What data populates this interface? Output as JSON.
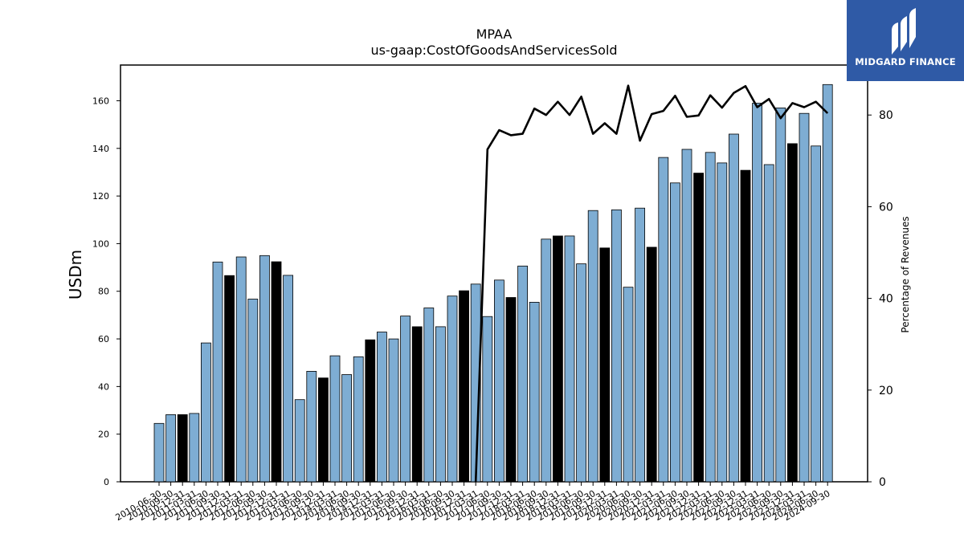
{
  "logo": {
    "text": "MIDGARD FINANCE",
    "bg_color": "#2f5aa6"
  },
  "chart_data": {
    "type": "bar",
    "title": "MPAA",
    "subtitle": "us-gaap:CostOfGoodsAndServicesSold",
    "ylabel": "USDm",
    "ylabel_right": "Percentage of Revenues",
    "ylim": [
      0,
      175
    ],
    "ylim_right": [
      0,
      90.9
    ],
    "yticks": [
      0,
      20,
      40,
      60,
      80,
      100,
      120,
      140,
      160
    ],
    "yticks_right": [
      0,
      20,
      40,
      60,
      80
    ],
    "grid": false,
    "bar_color": "#7eadd3",
    "highlight_color": "#000000",
    "line_color": "#000000",
    "categories": [
      "2010-06-30",
      "2010-09-30",
      "2010-12-31",
      "2011-03-31",
      "2011-06-30",
      "2011-09-30",
      "2011-12-31",
      "2012-03-31",
      "2012-06-30",
      "2012-09-30",
      "2012-12-31",
      "2013-03-31",
      "2013-06-30",
      "2013-09-30",
      "2013-12-31",
      "2014-03-31",
      "2014-06-30",
      "2014-09-30",
      "2014-12-31",
      "2015-03-31",
      "2015-06-30",
      "2015-09-30",
      "2015-12-31",
      "2016-03-31",
      "2016-06-30",
      "2016-09-30",
      "2016-12-31",
      "2017-03-31",
      "2017-06-30",
      "2017-09-30",
      "2017-12-31",
      "2018-03-31",
      "2018-06-30",
      "2018-09-30",
      "2018-12-31",
      "2019-03-31",
      "2019-06-30",
      "2019-09-30",
      "2019-12-31",
      "2020-03-31",
      "2020-06-30",
      "2020-09-30",
      "2020-12-31",
      "2021-03-31",
      "2021-06-30",
      "2021-09-30",
      "2021-12-31",
      "2022-03-31",
      "2022-06-30",
      "2022-09-30",
      "2022-12-31",
      "2023-03-31",
      "2023-06-30",
      "2023-09-30",
      "2023-12-31",
      "2024-03-31",
      "2024-06-30",
      "2024-09-30"
    ],
    "values": [
      24.5,
      28.2,
      28.2,
      28.7,
      58.3,
      92.3,
      86.6,
      94.4,
      76.7,
      95.0,
      92.4,
      86.7,
      34.5,
      46.4,
      43.6,
      52.9,
      45.0,
      52.5,
      59.6,
      62.9,
      60.0,
      69.6,
      65.1,
      73.0,
      65.1,
      78.0,
      80.2,
      83.0,
      69.4,
      84.7,
      77.4,
      90.6,
      75.4,
      101.9,
      103.2,
      103.2,
      91.5,
      113.9,
      98.2,
      114.2,
      81.7,
      114.9,
      98.5,
      136.2,
      125.5,
      139.6,
      129.6,
      138.3,
      133.9,
      146.0,
      130.8,
      159.0,
      133.2,
      157.0,
      142.0,
      154.7,
      141.0,
      166.8
    ],
    "highlighted": [
      false,
      false,
      true,
      false,
      false,
      false,
      true,
      false,
      false,
      false,
      true,
      false,
      false,
      false,
      true,
      false,
      false,
      false,
      true,
      false,
      false,
      false,
      true,
      false,
      false,
      false,
      true,
      false,
      false,
      false,
      true,
      false,
      false,
      false,
      true,
      false,
      false,
      false,
      true,
      false,
      false,
      false,
      true,
      false,
      false,
      false,
      true,
      false,
      false,
      false,
      true,
      false,
      false,
      false,
      true,
      false,
      false,
      false
    ],
    "line_series": {
      "name": "Percentage of Revenues",
      "values": [
        null,
        null,
        null,
        null,
        null,
        null,
        null,
        null,
        null,
        null,
        null,
        null,
        null,
        null,
        null,
        null,
        null,
        null,
        null,
        null,
        null,
        null,
        null,
        null,
        null,
        null,
        null,
        null,
        72.5,
        76.7,
        75.6,
        75.9,
        81.4,
        80.0,
        82.9,
        80.0,
        84.0,
        75.9,
        78.2,
        75.9,
        86.4,
        74.4,
        80.2,
        80.9,
        84.2,
        79.6,
        79.9,
        84.3,
        81.6,
        84.8,
        86.3,
        81.7,
        83.5,
        79.3,
        82.6,
        81.7,
        82.9,
        80.4
      ]
    }
  }
}
